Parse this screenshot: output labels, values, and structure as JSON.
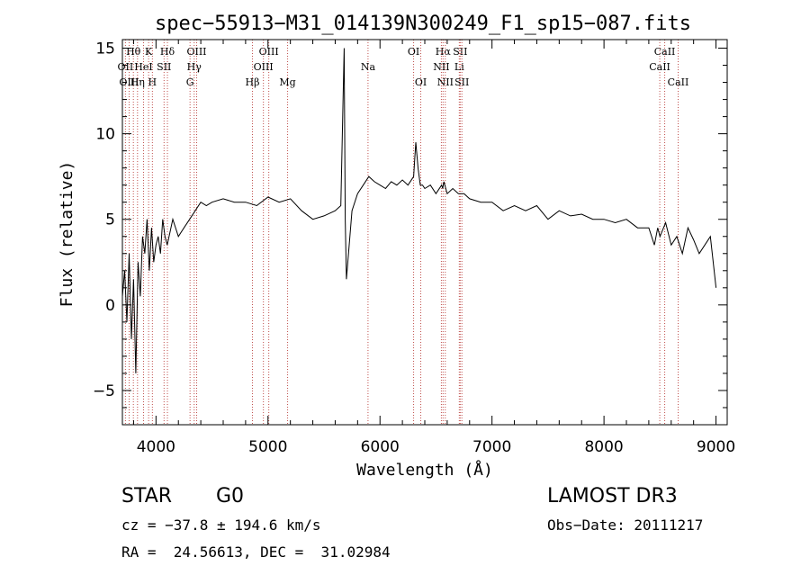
{
  "chart_data": {
    "type": "line",
    "title": "spec−55913−M31_014139N300249_F1_sp15−087.fits",
    "xlabel": "Wavelength (Å)",
    "ylabel": "Flux (relative)",
    "xlim": [
      3700,
      9100
    ],
    "ylim": [
      -7,
      15.5
    ],
    "xticks": [
      4000,
      5000,
      6000,
      7000,
      8000,
      9000
    ],
    "yticks": [
      -5,
      0,
      5,
      10,
      15
    ],
    "ytick_labels": [
      "−5",
      "0",
      "5",
      "10",
      "15"
    ],
    "grid": false,
    "series": [
      {
        "name": "flux",
        "x": [
          3700,
          3720,
          3740,
          3760,
          3780,
          3800,
          3820,
          3840,
          3860,
          3880,
          3900,
          3920,
          3940,
          3960,
          3980,
          4000,
          4020,
          4040,
          4060,
          4080,
          4100,
          4150,
          4200,
          4250,
          4300,
          4350,
          4400,
          4450,
          4500,
          4600,
          4700,
          4800,
          4900,
          5000,
          5100,
          5200,
          5300,
          5400,
          5500,
          5600,
          5650,
          5680,
          5690,
          5700,
          5750,
          5800,
          5850,
          5900,
          5950,
          6000,
          6050,
          6100,
          6150,
          6200,
          6250,
          6300,
          6320,
          6340,
          6360,
          6380,
          6400,
          6450,
          6500,
          6550,
          6560,
          6570,
          6600,
          6650,
          6700,
          6750,
          6800,
          6900,
          7000,
          7100,
          7200,
          7300,
          7400,
          7500,
          7600,
          7700,
          7800,
          7900,
          8000,
          8100,
          8200,
          8300,
          8400,
          8450,
          8480,
          8500,
          8550,
          8600,
          8650,
          8700,
          8750,
          8800,
          8850,
          8900,
          8950,
          9000
        ],
        "y": [
          0.5,
          2.0,
          -1.0,
          3.0,
          -2.0,
          1.5,
          -4.0,
          2.5,
          0.5,
          4.0,
          3.0,
          5.0,
          2.0,
          4.5,
          2.5,
          3.5,
          4.0,
          3.0,
          5.0,
          4.0,
          3.5,
          5.0,
          4.0,
          4.5,
          5.0,
          5.5,
          6.0,
          5.8,
          6.0,
          6.2,
          6.0,
          6.0,
          5.8,
          6.3,
          6.0,
          6.2,
          5.5,
          5.0,
          5.2,
          5.5,
          5.8,
          15.0,
          5.0,
          1.5,
          5.5,
          6.5,
          7.0,
          7.5,
          7.2,
          7.0,
          6.8,
          7.2,
          7.0,
          7.3,
          7.0,
          7.5,
          9.5,
          8.0,
          7.0,
          7.0,
          6.8,
          7.0,
          6.5,
          7.0,
          6.8,
          7.2,
          6.5,
          6.8,
          6.5,
          6.5,
          6.2,
          6.0,
          6.0,
          5.5,
          5.8,
          5.5,
          5.8,
          5.0,
          5.5,
          5.2,
          5.3,
          5.0,
          5.0,
          4.8,
          5.0,
          4.5,
          4.5,
          3.5,
          4.5,
          4.0,
          4.8,
          3.5,
          4.0,
          3.0,
          4.5,
          3.8,
          3.0,
          3.5,
          4.0,
          1.0
        ]
      }
    ],
    "line_markers": [
      {
        "label": "Hθ",
        "x": 3798,
        "row": 1
      },
      {
        "label": "K",
        "x": 3934,
        "row": 1
      },
      {
        "label": "Hδ",
        "x": 4102,
        "row": 1
      },
      {
        "label": "OIII",
        "x": 4363,
        "row": 1
      },
      {
        "label": "OIII",
        "x": 5007,
        "row": 1
      },
      {
        "label": "OI",
        "x": 6300,
        "row": 1
      },
      {
        "label": "Hα",
        "x": 6563,
        "row": 1
      },
      {
        "label": "SII",
        "x": 6716,
        "row": 1
      },
      {
        "label": "CaII",
        "x": 8542,
        "row": 1
      },
      {
        "label": "OII",
        "x": 3727,
        "row": 2
      },
      {
        "label": "HeI",
        "x": 3889,
        "row": 2
      },
      {
        "label": "SII",
        "x": 4072,
        "row": 2
      },
      {
        "label": "Hγ",
        "x": 4341,
        "row": 2
      },
      {
        "label": "OIII",
        "x": 4959,
        "row": 2
      },
      {
        "label": "Na",
        "x": 5893,
        "row": 2
      },
      {
        "label": "NII",
        "x": 6548,
        "row": 2
      },
      {
        "label": "Li",
        "x": 6708,
        "row": 2
      },
      {
        "label": "CaII",
        "x": 8498,
        "row": 2
      },
      {
        "label": "OIII",
        "x": 3760,
        "row": 3
      },
      {
        "label": "Hη",
        "x": 3835,
        "row": 3
      },
      {
        "label": "H",
        "x": 3968,
        "row": 3
      },
      {
        "label": "G",
        "x": 4304,
        "row": 3
      },
      {
        "label": "Hβ",
        "x": 4861,
        "row": 3
      },
      {
        "label": "Mg",
        "x": 5175,
        "row": 3
      },
      {
        "label": "OI",
        "x": 6364,
        "row": 3
      },
      {
        "label": "NII",
        "x": 6583,
        "row": 3
      },
      {
        "label": "SII",
        "x": 6731,
        "row": 3
      },
      {
        "label": "CaII",
        "x": 8662,
        "row": 3
      }
    ],
    "colors": {
      "spectrum": "#000000",
      "marker_line": "#c0504d",
      "axis": "#000000"
    }
  },
  "info": {
    "object_class": "STAR",
    "subclass": "G0",
    "survey": "LAMOST DR3",
    "velocity": "cz = −37.8 ± 194.6 km/s",
    "obs_date": "Obs−Date: 20111217",
    "coordinates": "RA =  24.56613, DEC =  31.02984"
  }
}
